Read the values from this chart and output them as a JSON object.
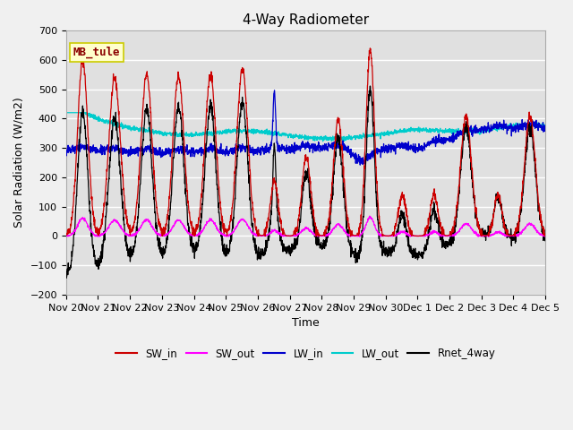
{
  "title": "4-Way Radiometer",
  "xlabel": "Time",
  "ylabel": "Solar Radiation (W/m2)",
  "station_label": "MB_tule",
  "ylim": [
    -200,
    700
  ],
  "yticks": [
    -200,
    -100,
    0,
    100,
    200,
    300,
    400,
    500,
    600,
    700
  ],
  "x_tick_labels": [
    "Nov 20",
    "Nov 21",
    "Nov 22",
    "Nov 23",
    "Nov 24",
    "Nov 25",
    "Nov 26",
    "Nov 27",
    "Nov 28",
    "Nov 29",
    "Nov 30",
    "Dec 1",
    "Dec 2",
    "Dec 3",
    "Dec 4",
    "Dec 5"
  ],
  "colors": {
    "SW_in": "#cc0000",
    "SW_out": "#ff00ff",
    "LW_in": "#0000cc",
    "LW_out": "#00cccc",
    "Rnet_4way": "#000000"
  },
  "plot_bg_color": "#e0e0e0",
  "fig_bg_color": "#f0f0f0",
  "n_days": 15,
  "n_points": 2160,
  "sw_in_day_amps": [
    600,
    535,
    550,
    545,
    550,
    570,
    185,
    265,
    395,
    635,
    140,
    140,
    410,
    140,
    410
  ],
  "sw_in_peak_widths": [
    0.16,
    0.18,
    0.17,
    0.17,
    0.17,
    0.17,
    0.12,
    0.14,
    0.15,
    0.13,
    0.12,
    0.12,
    0.17,
    0.12,
    0.17
  ],
  "lw_out_keypoints_x": [
    0,
    1,
    2,
    4,
    6,
    9,
    10,
    11,
    12,
    13,
    14,
    15
  ],
  "lw_out_keypoints_y": [
    410,
    385,
    365,
    350,
    350,
    335,
    340,
    360,
    365,
    362,
    370,
    370
  ]
}
